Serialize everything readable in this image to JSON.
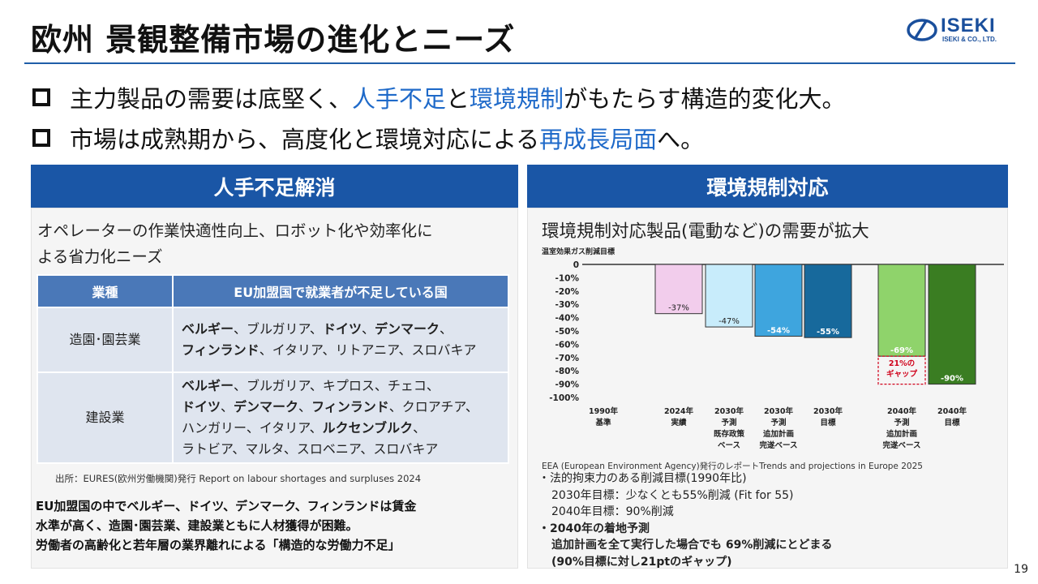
{
  "header": {
    "title": "欧州 景観整備市場の進化とニーズ",
    "logo_name": "ISEKI",
    "logo_sub": "ISEKI & CO., LTD."
  },
  "bullets": [
    {
      "pre": "主力製品の需要は底堅く、",
      "hl1": "人手不足",
      "mid": "と",
      "hl2": "環境規制",
      "post": "がもたらす構造的変化大。"
    },
    {
      "pre": "市場は成熟期から、高度化と環境対応による",
      "hl1": "再成長局面",
      "post": "へ。"
    }
  ],
  "left": {
    "heading": "人手不足解消",
    "lead_line1": "オペレーターの作業快適性向上、ロボット化や効率化に",
    "lead_line2": "よる省力化ニーズ",
    "table": {
      "col1": "業種",
      "col2": "EU加盟国で就業者が不足している国",
      "row1_industry": "造園･園芸業",
      "row1_l1_b1": "ベルギー",
      "row1_l1_t1": "、ブルガリア、",
      "row1_l1_b2": "ドイツ",
      "row1_l1_t2": "、",
      "row1_l1_b3": "デンマーク",
      "row1_l1_t3": "、",
      "row1_l2_b1": "フィンランド",
      "row1_l2_t1": "、イタリア、リトアニア、スロバキア",
      "row2_industry": "建設業",
      "row2_l1_b1": "ベルギー",
      "row2_l1_t1": "、ブルガリア、キプロス、チェコ、",
      "row2_l2_b1": "ドイツ",
      "row2_l2_t1": "、",
      "row2_l2_b2": "デンマーク",
      "row2_l2_t2": "、",
      "row2_l2_b3": "フィンランド",
      "row2_l2_t3": "、クロアチア、",
      "row2_l3_t1": "ハンガリー、イタリア、",
      "row2_l3_b1": "ルクセンブルク",
      "row2_l3_t2": "、",
      "row2_l4_t1": "ラトビア、マルタ、スロベニア、スロバキア"
    },
    "source": "出所：EURES(欧州労働機関)発行 Report on labour shortages and surpluses 2024",
    "summary_line1": "EU加盟国の中でベルギー、ドイツ、デンマーク、フィンランドは賃金",
    "summary_line2": "水準が高く、造園･園芸業、建設業ともに人材獲得が困難。",
    "summary_line3": "労働者の高齢化と若年層の業界離れによる「構造的な労働力不足」"
  },
  "right": {
    "heading": "環境規制対応",
    "subhead": "環境規制対応製品(電動など)の需要が拡大",
    "source": "EEA (European Environment Agency)発行のレポートTrends and projections in Europe 2025",
    "note1": "・法的拘束力のある削減目標(1990年比)",
    "note2": "2030年目標：少なくとも55%削減 (Fit for 55)",
    "note3": "2040年目標：90%削減",
    "note4": "・2040年の着地予測",
    "note5": "追加計画を全て実行した場合でも 69%削減にとどまる",
    "note6": "(90%目標に対し21ptのギャップ)"
  },
  "chart_data": {
    "type": "bar",
    "title": "温室効果ガス削減目標",
    "ylim": [
      -100,
      0
    ],
    "yticks": [
      "0",
      "-10%",
      "-20%",
      "-30%",
      "-40%",
      "-50%",
      "-60%",
      "-70%",
      "-80%",
      "-90%",
      "-100%"
    ],
    "categories": [
      [
        "1990年",
        "基準"
      ],
      [
        "2024年",
        "実績"
      ],
      [
        "2030年",
        "予測",
        "既存政策",
        "ベース"
      ],
      [
        "2030年",
        "予測",
        "追加計画",
        "完遂ベース"
      ],
      [
        "2030年",
        "目標"
      ],
      [
        "2040年",
        "予測",
        "追加計画",
        "完遂ベース"
      ],
      [
        "2040年",
        "目標"
      ]
    ],
    "values": [
      0,
      -37,
      -47,
      -54,
      -55,
      -69,
      -90
    ],
    "labels": [
      "",
      "-37%",
      "-47%",
      "-54%",
      "-55%",
      "-69%",
      "-90%"
    ],
    "colors": [
      "#ffffff",
      "#f2cdec",
      "#c8ecfb",
      "#3ea5de",
      "#17699c",
      "#8fd36b",
      "#3a7d22"
    ],
    "gap_annotation": [
      "21%の",
      "ギャップ"
    ],
    "grid": false,
    "legend": "none"
  },
  "page_number": "19"
}
